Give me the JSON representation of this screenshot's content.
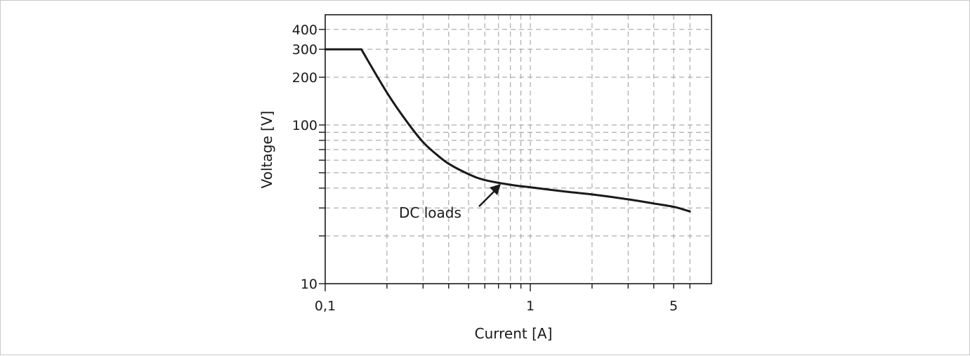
{
  "chart_data": {
    "type": "line",
    "title": "",
    "xlabel": "Current [A]",
    "ylabel": "Voltage [V]",
    "xscale": "log",
    "yscale": "log",
    "xlim": [
      0.1,
      7
    ],
    "ylim": [
      10,
      500
    ],
    "grid": true,
    "x_ticks": [
      0.1,
      0.2,
      0.3,
      0.4,
      0.5,
      0.6,
      0.7,
      0.8,
      0.9,
      1,
      2,
      3,
      4,
      5,
      6
    ],
    "x_tick_labels": [
      {
        "value": 0.1,
        "text": "0,1"
      },
      {
        "value": 1,
        "text": "1"
      },
      {
        "value": 5,
        "text": "5"
      }
    ],
    "y_grid": [
      20,
      30,
      40,
      50,
      60,
      70,
      80,
      90,
      100,
      200,
      300,
      400
    ],
    "y_tick_labels": [
      {
        "value": 10,
        "text": "10"
      },
      {
        "value": 100,
        "text": "100"
      },
      {
        "value": 200,
        "text": "200"
      },
      {
        "value": 300,
        "text": "300"
      },
      {
        "value": 400,
        "text": "400"
      }
    ],
    "series": [
      {
        "x": [
          0.1,
          0.15,
          0.2,
          0.25,
          0.3,
          0.35,
          0.4,
          0.5,
          0.6,
          0.8,
          1,
          1.5,
          2,
          3,
          4,
          5,
          5.5,
          6
        ],
        "y": [
          300,
          300,
          160,
          105,
          78,
          65,
          57,
          49,
          45,
          42,
          40.5,
          38,
          36.5,
          34,
          32,
          30.5,
          29.5,
          28.5
        ]
      }
    ],
    "annotations": [
      {
        "text": "DC loads",
        "arrow_to": {
          "x": 0.8,
          "y": 42
        }
      }
    ]
  }
}
